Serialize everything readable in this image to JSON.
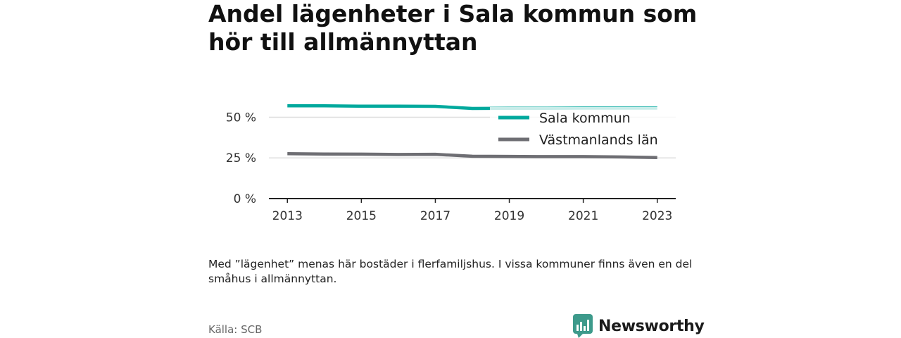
{
  "title": "Andel lägenheter i Sala kommun som hör till allmännyttan",
  "note": "Med ”lägenhet” menas här bostäder i flerfamiljshus. I vissa kommuner finns även en del småhus i allmännyttan.",
  "source": "Källa: SCB",
  "brand": {
    "name": "Newsworthy",
    "color": "#3d9a8b"
  },
  "colors": {
    "sala": "#00a99d",
    "lan": "#6e6e73",
    "grid": "#dddddd",
    "axis": "#222222"
  },
  "chart_data": {
    "type": "line",
    "x": [
      2013,
      2014,
      2015,
      2016,
      2017,
      2018,
      2019,
      2020,
      2021,
      2022,
      2023
    ],
    "xticks": [
      2013,
      2015,
      2017,
      2019,
      2021,
      2023
    ],
    "xtick_labels": [
      "2013",
      "2015",
      "2017",
      "2019",
      "2021",
      "2023"
    ],
    "yticks": [
      0,
      25,
      50
    ],
    "ytick_labels": [
      "0 %",
      "25 %",
      "50 %"
    ],
    "ylim": [
      0,
      58
    ],
    "xlim": [
      2012.5,
      2023.5
    ],
    "series": [
      {
        "name": "Sala kommun",
        "color": "#00a99d",
        "values": [
          57,
          57,
          56.8,
          56.8,
          56.7,
          55.4,
          55.5,
          55.5,
          55.6,
          55.6,
          55.6
        ]
      },
      {
        "name": "Västmanlands län",
        "color": "#6e6e73",
        "values": [
          27.6,
          27.4,
          27.3,
          27.1,
          27.2,
          26.0,
          25.9,
          25.8,
          25.8,
          25.6,
          25.2
        ]
      }
    ],
    "legend_position": "top-right"
  }
}
